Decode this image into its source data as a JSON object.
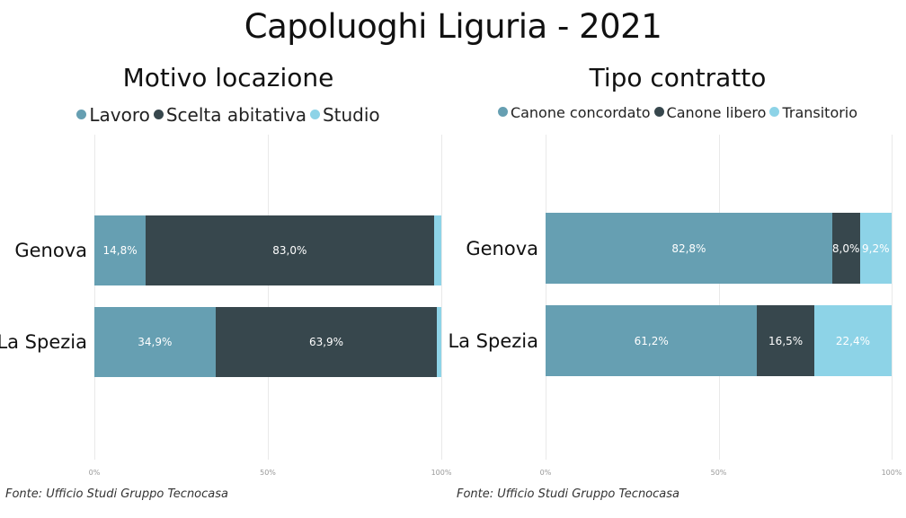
{
  "title": "Capoluoghi Liguria - 2021",
  "chart_data": [
    {
      "type": "bar",
      "orientation": "horizontal",
      "stacked": "100%",
      "title": "Motivo locazione",
      "categories": [
        "Genova",
        "La Spezia"
      ],
      "series": [
        {
          "name": "Lavoro",
          "color": "#669fb2",
          "values": [
            14.8,
            34.9
          ],
          "labels": [
            "14,8%",
            "34,9%"
          ]
        },
        {
          "name": "Scelta abitativa",
          "color": "#37474d",
          "values": [
            83.0,
            63.9
          ],
          "labels": [
            "83,0%",
            "63,9%"
          ]
        },
        {
          "name": "Studio",
          "color": "#8dd3e7",
          "values": [
            2.2,
            1.2
          ],
          "labels": [
            "",
            ""
          ]
        }
      ],
      "x_ticks": [
        "0%",
        "50%",
        "100%"
      ],
      "xlim": [
        0,
        100
      ],
      "legend_position": "top",
      "grid": true,
      "source": "Fonte: Ufficio Studi Gruppo Tecnocasa"
    },
    {
      "type": "bar",
      "orientation": "horizontal",
      "stacked": "100%",
      "title": "Tipo contratto",
      "categories": [
        "Genova",
        "La Spezia"
      ],
      "series": [
        {
          "name": "Canone concordato",
          "color": "#669fb2",
          "values": [
            82.8,
            61.2
          ],
          "labels": [
            "82,8%",
            "61,2%"
          ]
        },
        {
          "name": "Canone libero",
          "color": "#37474d",
          "values": [
            8.0,
            16.5
          ],
          "labels": [
            "8,0%",
            "16,5%"
          ]
        },
        {
          "name": "Transitorio",
          "color": "#8dd3e7",
          "values": [
            9.2,
            22.4
          ],
          "labels": [
            "9,2%",
            "22,4%"
          ]
        }
      ],
      "x_ticks": [
        "0%",
        "50%",
        "100%"
      ],
      "xlim": [
        0,
        100
      ],
      "legend_position": "top",
      "grid": true,
      "source": "Fonte: Ufficio Studi Gruppo Tecnocasa"
    }
  ]
}
